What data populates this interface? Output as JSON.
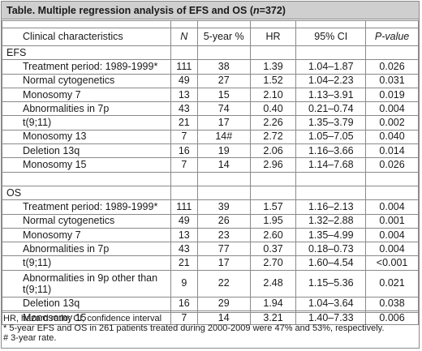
{
  "title": {
    "prefix": "Table. Multiple regression analysis of EFS and OS (",
    "n_italic": "n",
    "suffix": "=372)"
  },
  "columns": {
    "characteristic": "Clinical characteristics",
    "n": "N",
    "five_year": "5-year %",
    "hr": "HR",
    "ci": "95% CI",
    "p": "P-value"
  },
  "efs": {
    "label": "EFS",
    "rows": [
      {
        "name": "Treatment period: 1989-1999*",
        "n": "111",
        "pct": "38",
        "hr": "1.39",
        "ci": "1.04–1.87",
        "p": "0.026"
      },
      {
        "name": "Normal cytogenetics",
        "n": "49",
        "pct": "27",
        "hr": "1.52",
        "ci": "1.04–2.23",
        "p": "0.031"
      },
      {
        "name": "Monosomy 7",
        "n": "13",
        "pct": "15",
        "hr": "2.10",
        "ci": "1.13–3.91",
        "p": "0.019"
      },
      {
        "name": "Abnormalities in 7p",
        "n": "43",
        "pct": "74",
        "hr": "0.40",
        "ci": "0.21–0.74",
        "p": "0.004"
      },
      {
        "name": "t(9;11)",
        "n": "21",
        "pct": "17",
        "hr": "2.26",
        "ci": "1.35–3.79",
        "p": "0.002"
      },
      {
        "name": "Monosomy 13",
        "n": "7",
        "pct": "14#",
        "hr": "2.72",
        "ci": "1.05–7.05",
        "p": "0.040"
      },
      {
        "name": "Deletion 13q",
        "n": "16",
        "pct": "19",
        "hr": "2.06",
        "ci": "1.16–3.66",
        "p": "0.014"
      },
      {
        "name": "Monosomy 15",
        "n": "7",
        "pct": "14",
        "hr": "2.96",
        "ci": "1.14–7.68",
        "p": "0.026"
      }
    ]
  },
  "os": {
    "label": "OS",
    "rows": [
      {
        "name": "Treatment period: 1989-1999*",
        "n": "111",
        "pct": "39",
        "hr": "1.57",
        "ci": "1.16–2.13",
        "p": "0.004"
      },
      {
        "name": "Normal cytogenetics",
        "n": "49",
        "pct": "26",
        "hr": "1.95",
        "ci": "1.32–2.88",
        "p": "0.001"
      },
      {
        "name": "Monosomy 7",
        "n": "13",
        "pct": "23",
        "hr": "2.60",
        "ci": "1.35–4.99",
        "p": "0.004"
      },
      {
        "name": "Abnormalities in 7p",
        "n": "43",
        "pct": "77",
        "hr": "0.37",
        "ci": "0.18–0.73",
        "p": "0.004"
      },
      {
        "name": "t(9;11)",
        "n": "21",
        "pct": "17",
        "hr": "2.70",
        "ci": "1.60–4.54",
        "p": "<0.001"
      },
      {
        "name": "Abnormalities in 9p other than t(9;11)",
        "n": "9",
        "pct": "22",
        "hr": "2.48",
        "ci": "1.15–5.36",
        "p": "0.021"
      },
      {
        "name": "Deletion 13q",
        "n": "16",
        "pct": "29",
        "hr": "1.94",
        "ci": "1.04–3.64",
        "p": "0.038"
      },
      {
        "name": "Monosomy 15",
        "n": "7",
        "pct": "14",
        "hr": "3.21",
        "ci": "1.40–7.33",
        "p": "0.006"
      }
    ]
  },
  "footnotes": {
    "abbrev": "HR, hazard ratio; CI, confidence interval",
    "star": "* 5-year EFS and OS in 261 patients treated during 2000-2009 were 47% and 53%, respectively.",
    "hash": "# 3-year rate."
  }
}
